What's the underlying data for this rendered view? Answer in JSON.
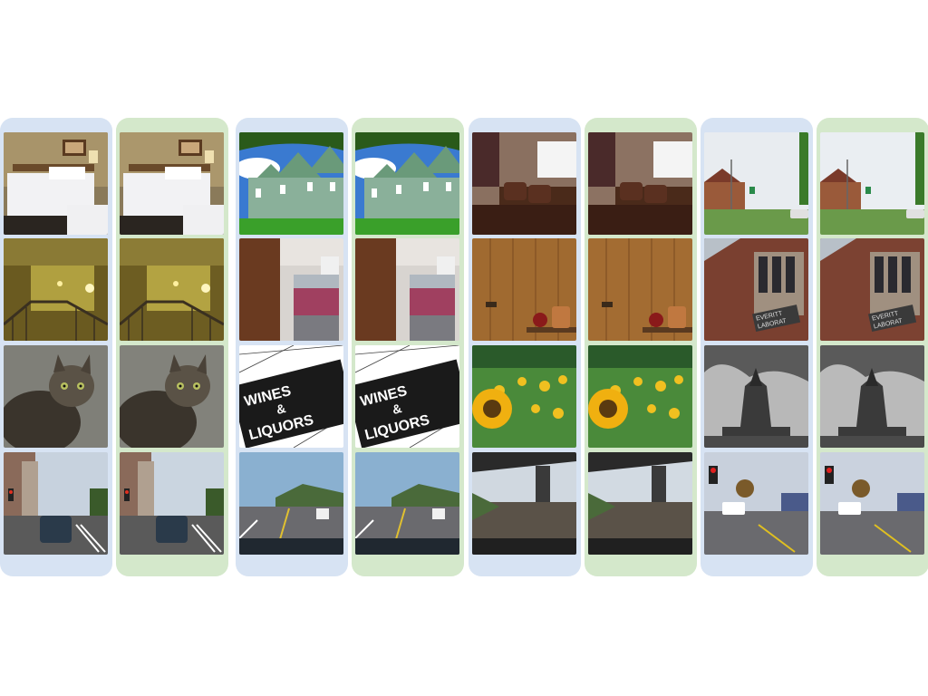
{
  "columns": [
    {
      "frame": "blue",
      "variant": "a"
    },
    {
      "frame": "green",
      "variant": "b"
    },
    {
      "frame": "blue",
      "variant": "a"
    },
    {
      "frame": "green",
      "variant": "b"
    },
    {
      "frame": "blue",
      "variant": "a"
    },
    {
      "frame": "green",
      "variant": "b"
    },
    {
      "frame": "blue",
      "variant": "a"
    },
    {
      "frame": "green",
      "variant": "b"
    }
  ],
  "scenes": {
    "bedroom": {
      "description_name": "bedroom"
    },
    "stairwell": {
      "description_name": "stairwell"
    },
    "cat": {
      "description_name": "cat"
    },
    "city-street": {
      "description_name": "city-street"
    },
    "houses": {
      "description_name": "houses"
    },
    "office": {
      "description_name": "office"
    },
    "sign": {
      "text": [
        "WINES",
        "&",
        "LIQUORS"
      ]
    },
    "highway": {
      "description_name": "highway"
    },
    "home-theater": {
      "description_name": "home-theater"
    },
    "wood-wall": {
      "description_name": "wood-wall"
    },
    "sunflowers": {
      "description_name": "sunflowers"
    },
    "overpass-road": {
      "description_name": "overpass-road"
    },
    "suburb": {
      "description_name": "suburb"
    },
    "brick-building": {
      "text": [
        "EVERITT",
        "LABORAT"
      ]
    },
    "ornate-tower": {
      "description_name": "ornate-tower"
    },
    "intersection": {
      "description_name": "intersection"
    }
  },
  "colors": {
    "frame_blue": "#d7e3f3",
    "frame_green": "#d4e8cb"
  }
}
